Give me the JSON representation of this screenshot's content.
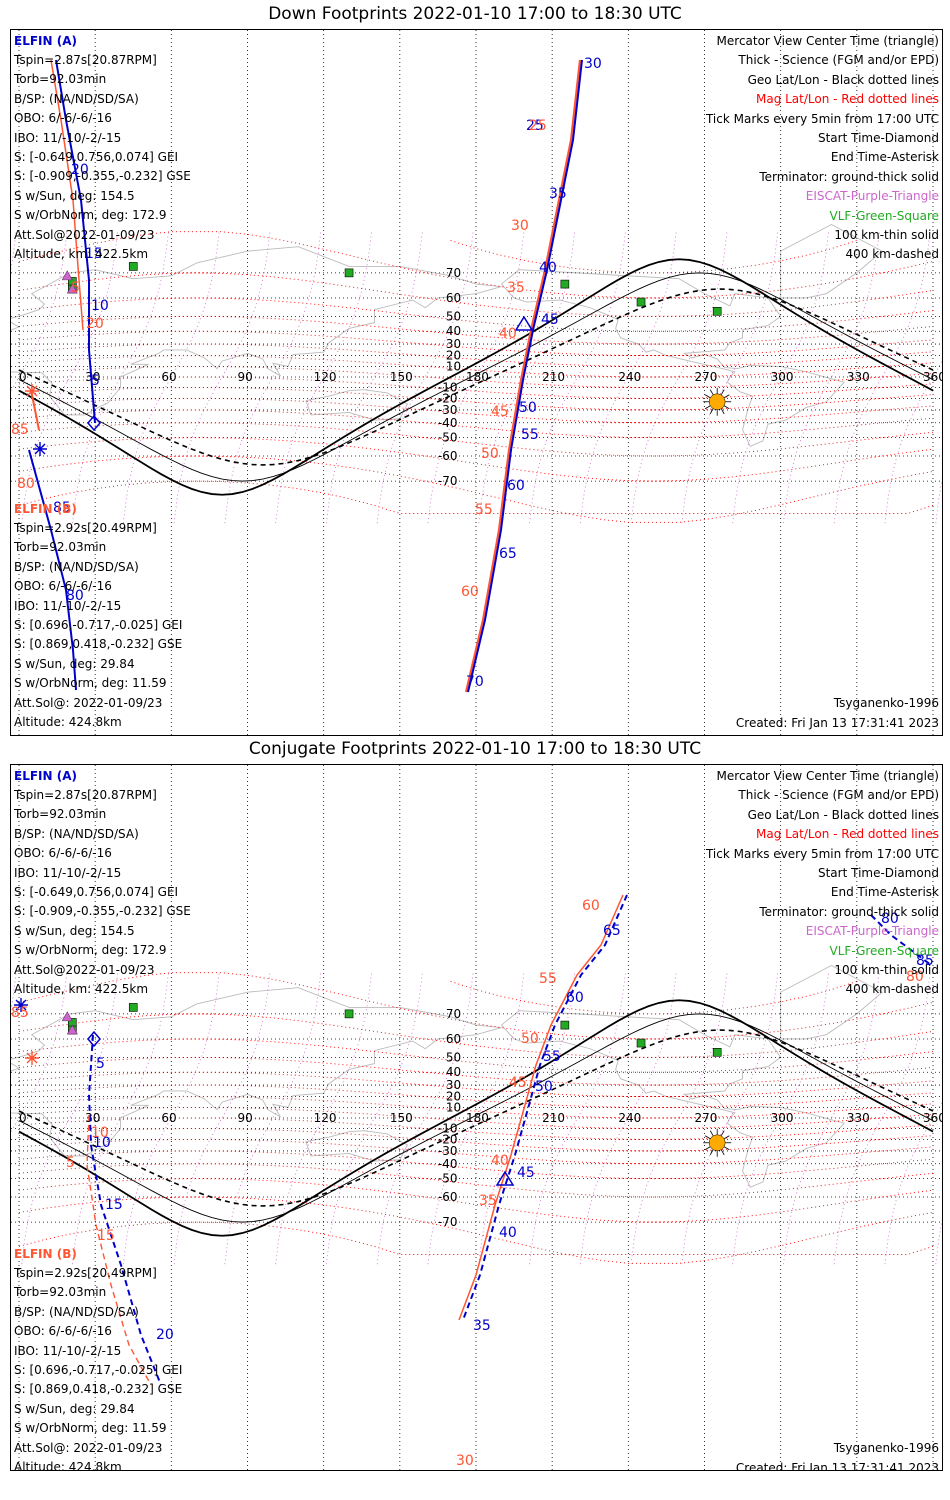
{
  "panels": [
    {
      "title": "Down Footprints 2022-01-10 17:00 to 18:30 UTC",
      "sat_a": {
        "name": "ELFIN (A)",
        "lines": [
          "Tspin=2.87s[20.87RPM]",
          "Torb=92.03min",
          "B/SP: (NA/ND/SD/SA)",
          "OBO: 6/-6/-6/-16",
          "IBO: 11/-10/-2/-15",
          "S: [-0.649,0.756,0.074] GEI",
          "S: [-0.909,-0.355,-0.232] GSE",
          "S w/Sun, deg: 154.5",
          "S w/OrbNorm, deg: 172.9",
          "Att.Sol@2022-01-09/23",
          "Altitude, km: 422.5km"
        ]
      },
      "sat_b": {
        "name": "ELFIN (B)",
        "lines": [
          "Tspin=2.92s[20.49RPM]",
          "Torb=92.03min",
          "B/SP: (NA/ND/SD/SA)",
          "OBO: 6/-6/-6/-16",
          "IBO: 11/-10/-2/-15",
          "S: [0.696,-0.717,-0.025] GEI",
          "S: [0.869,0.418,-0.232] GSE",
          "S w/Sun, deg: 29.84",
          "S w/OrbNorm, deg: 11.59",
          "Att.Sol@: 2022-01-09/23",
          "Altitude: 424.8km"
        ]
      },
      "legend": [
        "Mercator View Center Time (triangle)",
        "Thick - Science (FGM and/or EPD)",
        "Geo Lat/Lon - Black dotted lines",
        "Mag Lat/Lon - Red dotted lines",
        "Tick Marks every 5min from 17:00 UTC",
        "Start Time-Diamond",
        "End Time-Asterisk",
        "Terminator: ground-thick solid",
        "EISCAT-Purple-Triangle",
        "VLF-Green-Square",
        "100 km-thin solid",
        "400 km-dashed"
      ],
      "model": "Tsyganenko-1996",
      "created": "Created: Fri Jan 13 17:31:41 2023",
      "ticks_a": [
        "5",
        "10",
        "15",
        "20",
        "25",
        "30",
        "35",
        "40",
        "45",
        "50",
        "55",
        "60",
        "65",
        "70"
      ],
      "ticks_b_tr": [
        "85",
        "80",
        "85",
        "80"
      ],
      "mag_labels": [
        "5",
        "20",
        "25",
        "30",
        "35",
        "40",
        "45",
        "50",
        "55",
        "60",
        "85",
        "80"
      ],
      "lat_labels": [
        "70",
        "60",
        "50",
        "40",
        "30",
        "20",
        "10",
        "-10",
        "-20",
        "-30",
        "-40",
        "-50",
        "-60",
        "-70"
      ],
      "lon_labels": [
        "0",
        "30",
        "60",
        "90",
        "120",
        "150",
        "180",
        "210",
        "240",
        "270",
        "300",
        "330",
        "360"
      ]
    },
    {
      "title": "Conjugate Footprints 2022-01-10 17:00 to 18:30 UTC",
      "sat_a": {
        "name": "ELFIN (A)",
        "lines": [
          "Tspin=2.87s[20.87RPM]",
          "Torb=92.03min",
          "B/SP: (NA/ND/SD/SA)",
          "OBO: 6/-6/-6/-16",
          "IBO: 11/-10/-2/-15",
          "S: [-0.649,0.756,0.074] GEI",
          "S: [-0.909,-0.355,-0.232] GSE",
          "S w/Sun, deg: 154.5",
          "S w/OrbNorm, deg: 172.9",
          "Att.Sol@2022-01-09/23",
          "Altitude, km: 422.5km"
        ]
      },
      "sat_b": {
        "name": "ELFIN (B)",
        "lines": [
          "Tspin=2.92s[20.49RPM]",
          "Torb=92.03min",
          "B/SP: (NA/ND/SD/SA)",
          "OBO: 6/-6/-6/-16",
          "IBO: 11/-10/-2/-15",
          "S: [0.696,-0.717,-0.025] GEI",
          "S: [0.869,0.418,-0.232] GSE",
          "S w/Sun, deg: 29.84",
          "S w/OrbNorm, deg: 11.59",
          "Att.Sol@: 2022-01-09/23",
          "Altitude: 424.8km"
        ]
      },
      "legend": [
        "Mercator View Center Time (triangle)",
        "Thick - Science (FGM and/or EPD)",
        "Geo Lat/Lon - Black dotted lines",
        "Mag Lat/Lon - Red dotted lines",
        "Tick Marks every 5min from 17:00 UTC",
        "Start Time-Diamond",
        "End Time-Asterisk",
        "Terminator: ground-thick solid",
        "EISCAT-Purple-Triangle",
        "VLF-Green-Square",
        "100 km-thin solid",
        "400 km-dashed"
      ],
      "model": "Tsyganenko-1996",
      "created": "Created: Fri Jan 13 17:31:41 2023",
      "ticks_a": [
        "5",
        "10",
        "15",
        "20",
        "35",
        "40",
        "45",
        "50",
        "55",
        "60",
        "65"
      ],
      "ticks_b_tr": [
        "85",
        "80",
        "85",
        "80"
      ],
      "mag_labels": [
        "5",
        "10",
        "15",
        "30",
        "35",
        "40",
        "45",
        "50",
        "55",
        "60",
        "85",
        "80"
      ],
      "lat_labels": [
        "70",
        "60",
        "50",
        "40",
        "30",
        "20",
        "10",
        "-10",
        "-20",
        "-30",
        "-40",
        "-50",
        "-60",
        "-70"
      ],
      "lon_labels": [
        "0",
        "30",
        "60",
        "90",
        "120",
        "150",
        "180",
        "210",
        "240",
        "270",
        "300",
        "330",
        "360"
      ]
    }
  ],
  "colors": {
    "sat_a": "#0000cc",
    "sat_b": "#ff5533",
    "mag": "#ff0000",
    "eiscat": "#cc66cc",
    "vlf": "#22aa22",
    "geo": "#000000",
    "land": "#bbbbbb",
    "sun": "#ffaa00"
  },
  "sites": {
    "vlf": [
      [
        45,
        72
      ],
      [
        130,
        70
      ],
      [
        215,
        66
      ],
      [
        245,
        58
      ],
      [
        275,
        53
      ],
      [
        21,
        67
      ],
      [
        21,
        64
      ]
    ],
    "eiscat": [
      [
        19,
        69
      ],
      [
        21,
        64
      ]
    ]
  },
  "sun": {
    "lon": 275,
    "lat": -23
  }
}
